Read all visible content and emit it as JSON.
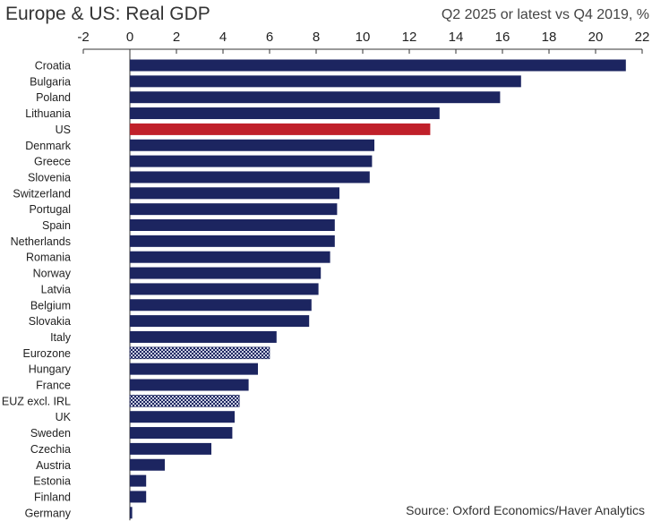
{
  "title": "Europe & US: Real GDP",
  "subtitle": "Q2 2025 or latest vs Q4 2019, %",
  "source": "Source: Oxford Economics/Haver Analytics",
  "colors": {
    "default_bar": "#1c2560",
    "highlight_bar": "#c0202a",
    "aggregate_pattern_fg": "#1c2560",
    "aggregate_pattern_bg": "#c9cde0",
    "axis": "#333333"
  },
  "chart_data": {
    "type": "bar",
    "orientation": "horizontal",
    "title": "Europe & US: Real GDP",
    "subtitle": "Q2 2025 or latest vs Q4 2019, %",
    "xlabel": "",
    "ylabel": "",
    "xlim": [
      -2,
      22
    ],
    "xticks": [
      -2,
      0,
      2,
      4,
      6,
      8,
      10,
      12,
      14,
      16,
      18,
      20,
      22
    ],
    "x_axis_position": "top",
    "grid": false,
    "legend": "none",
    "categories": [
      "Croatia",
      "Bulgaria",
      "Poland",
      "Lithuania",
      "US",
      "Denmark",
      "Greece",
      "Slovenia",
      "Switzerland",
      "Portugal",
      "Spain",
      "Netherlands",
      "Romania",
      "Norway",
      "Latvia",
      "Belgium",
      "Slovakia",
      "Italy",
      "Eurozone",
      "Hungary",
      "France",
      "EUZ excl. IRL",
      "UK",
      "Sweden",
      "Czechia",
      "Austria",
      "Estonia",
      "Finland",
      "Germany"
    ],
    "values": [
      21.3,
      16.8,
      15.9,
      13.3,
      12.9,
      10.5,
      10.4,
      10.3,
      9.0,
      8.9,
      8.8,
      8.8,
      8.6,
      8.2,
      8.1,
      7.8,
      7.7,
      6.3,
      6.0,
      5.5,
      5.1,
      4.7,
      4.5,
      4.4,
      3.5,
      1.5,
      0.7,
      0.7,
      0.1
    ],
    "highlighted": [
      "US"
    ],
    "aggregates": [
      "Eurozone",
      "EUZ excl. IRL"
    ]
  }
}
